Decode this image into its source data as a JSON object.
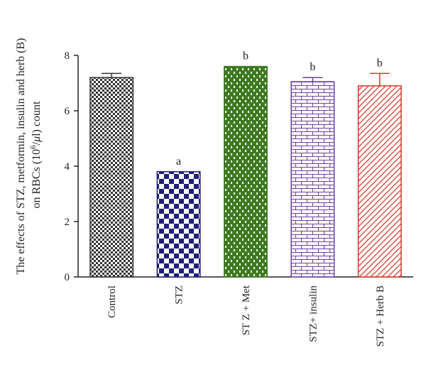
{
  "chart_data": {
    "type": "bar",
    "title": "",
    "xlabel": "",
    "ylabel_line1": "The effects of STZ, metformin, insulin and herb (B)",
    "ylabel_line2_prefix": "on RBCs (10",
    "ylabel_line2_sup": "6",
    "ylabel_line2_mid": "/",
    "ylabel_line2_mu": "μ",
    "ylabel_line2_suffix": "l) count",
    "ylim": [
      0,
      8
    ],
    "yticks": [
      0,
      2,
      4,
      6,
      8
    ],
    "categories": [
      "Control",
      "STZ",
      "ST Z + Met",
      "STZ+ insulin",
      "STZ + Herb B"
    ],
    "values": [
      7.2,
      3.8,
      7.6,
      7.05,
      6.9
    ],
    "errors": [
      0.15,
      0,
      0,
      0.15,
      0.45
    ],
    "annotations": [
      "",
      "a",
      "b",
      "b",
      "b"
    ],
    "colors": [
      "#333333",
      "#1f1f7a",
      "#3d7a1f",
      "#6a3fa0",
      "#d23c28"
    ],
    "patterns": [
      "checker-small",
      "checker-large",
      "brick-vertical",
      "brick-horizontal",
      "diagonal"
    ],
    "grid": false,
    "legend": "none"
  }
}
